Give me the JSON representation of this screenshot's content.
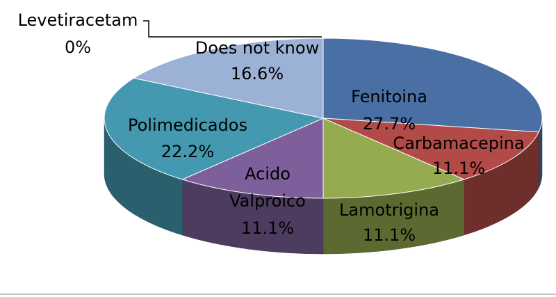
{
  "chart_data": {
    "type": "pie",
    "style": "3d",
    "categories": [
      "Fenitoina",
      "Carbamacepina",
      "Lamotrigina",
      "Acido Valproico",
      "Polimedicados",
      "Does not know",
      "Levetiracetam"
    ],
    "values": [
      27.7,
      11.1,
      11.1,
      11.1,
      22.2,
      16.6,
      0
    ],
    "value_labels": [
      "27.7%",
      "11.1%",
      "11.1%",
      "11.1%",
      "22.2%",
      "16.6%",
      "0%"
    ],
    "colors": [
      "#4a6fa5",
      "#b24a47",
      "#94ab4f",
      "#7d5f9b",
      "#4499b0",
      "#9cb1d6",
      "#c9c9c9"
    ],
    "title": "",
    "legend": "none"
  }
}
